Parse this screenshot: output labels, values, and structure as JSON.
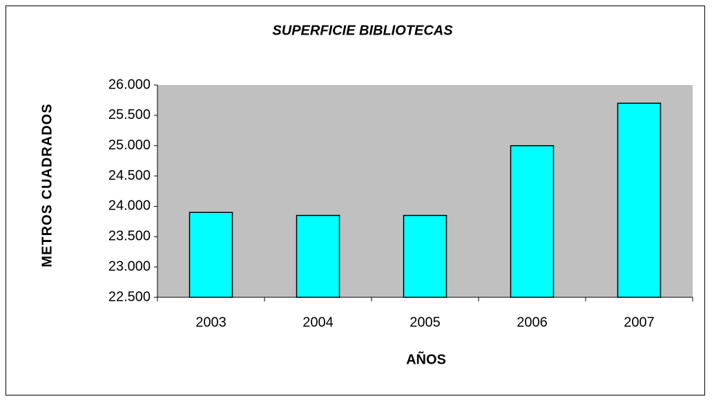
{
  "chart_data": {
    "type": "bar",
    "title": "SUPERFICIE BIBLIOTECAS",
    "x_label": "AÑOS",
    "y_label": "METROS CUADRADOS",
    "categories": [
      "2003",
      "2004",
      "2005",
      "2006",
      "2007"
    ],
    "values": [
      23900,
      23850,
      23850,
      25000,
      25700
    ],
    "color": "#00ffff",
    "plot_background": "#c0c0c0",
    "ylim": [
      22500,
      26000
    ],
    "yticks": [
      {
        "value": 22500,
        "label": "22.500"
      },
      {
        "value": 23000,
        "label": "23.000"
      },
      {
        "value": 23500,
        "label": "23.500"
      },
      {
        "value": 24000,
        "label": "24.000"
      },
      {
        "value": 24500,
        "label": "24.500"
      },
      {
        "value": 25000,
        "label": "25.000"
      },
      {
        "value": 25500,
        "label": "25.500"
      },
      {
        "value": 26000,
        "label": "26.000"
      }
    ],
    "grid": false
  }
}
